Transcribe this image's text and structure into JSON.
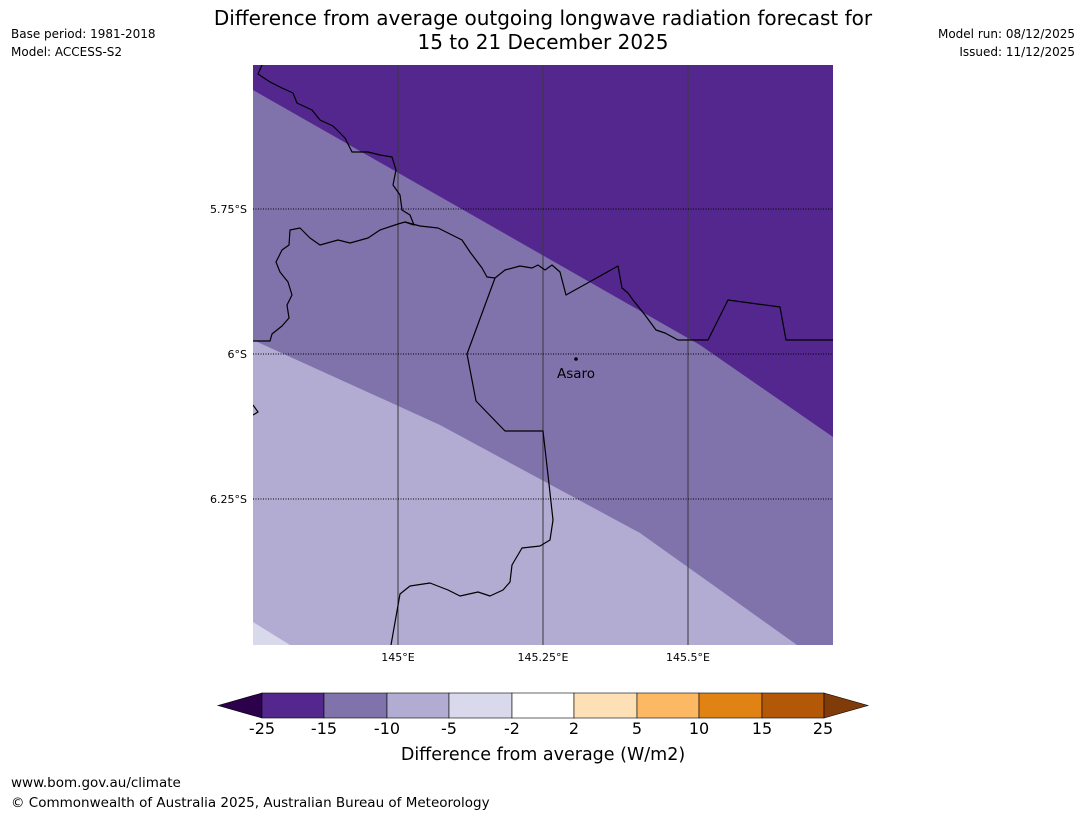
{
  "header": {
    "base_period": "Base period: 1981-2018",
    "model": "Model: ACCESS-S2",
    "title_line1": "Difference from average outgoing longwave radiation forecast for",
    "title_line2": "15 to 21 December 2025",
    "model_run": "Model run: 08/12/2025",
    "issued": "Issued: 11/12/2025"
  },
  "map": {
    "lat_labels": [
      "5.75°S",
      "6°S",
      "6.25°S"
    ],
    "lon_labels": [
      "145°E",
      "145.25°E",
      "145.5°E"
    ],
    "place": {
      "name": "Asaro"
    }
  },
  "colorbar": {
    "ticks": [
      "-25",
      "-15",
      "-10",
      "-5",
      "-2",
      "2",
      "5",
      "10",
      "15",
      "25"
    ],
    "colors": [
      "#54278f",
      "#8073ac",
      "#b2abd2",
      "#d8daeb",
      "#ffffff",
      "#fee0b6",
      "#fdb863",
      "#e08214",
      "#b35806"
    ],
    "under_color": "#2d004b",
    "over_color": "#7f3b08",
    "title": "Difference from average (W/m2)"
  },
  "footer": {
    "url": "www.bom.gov.au/climate",
    "copyright": "© Commonwealth of Australia 2025, Australian Bureau of Meteorology"
  }
}
